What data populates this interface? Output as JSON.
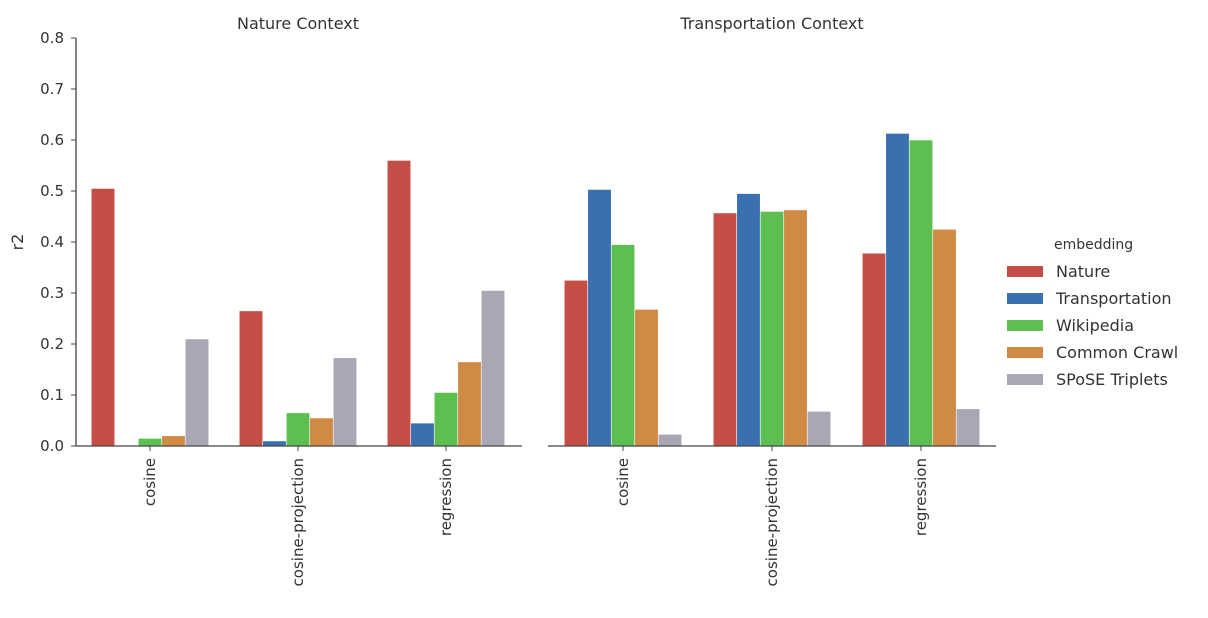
{
  "chart_data": {
    "type": "bar",
    "ylabel": "r2",
    "ylim": [
      0,
      0.8
    ],
    "yticks": [
      0.0,
      0.1,
      0.2,
      0.3,
      0.4,
      0.5,
      0.6,
      0.7,
      0.8
    ],
    "ytick_labels": [
      "0.0",
      "0.1",
      "0.2",
      "0.3",
      "0.4",
      "0.5",
      "0.6",
      "0.7",
      "0.8"
    ],
    "grid": false,
    "legend": {
      "title": "embedding",
      "placement": "right",
      "entries": [
        {
          "name": "Nature",
          "color": "#c44e45"
        },
        {
          "name": "Transportation",
          "color": "#3a6fb0"
        },
        {
          "name": "Wikipedia",
          "color": "#5cbf50"
        },
        {
          "name": "Common Crawl",
          "color": "#d08a45"
        },
        {
          "name": "SPoSE Triplets",
          "color": "#a9a7b3"
        }
      ]
    },
    "panels": [
      {
        "title": "Nature Context",
        "categories": [
          "cosine",
          "cosine-projection",
          "regression"
        ],
        "series": [
          {
            "name": "Nature",
            "values": [
              0.505,
              0.265,
              0.56
            ]
          },
          {
            "name": "Transportation",
            "values": [
              0.0,
              0.01,
              0.045
            ]
          },
          {
            "name": "Wikipedia",
            "values": [
              0.015,
              0.065,
              0.105
            ]
          },
          {
            "name": "Common Crawl",
            "values": [
              0.02,
              0.055,
              0.165
            ]
          },
          {
            "name": "SPoSE Triplets",
            "values": [
              0.21,
              0.173,
              0.305
            ]
          }
        ]
      },
      {
        "title": "Transportation Context",
        "categories": [
          "cosine",
          "cosine-projection",
          "regression"
        ],
        "series": [
          {
            "name": "Nature",
            "values": [
              0.325,
              0.457,
              0.378
            ]
          },
          {
            "name": "Transportation",
            "values": [
              0.503,
              0.495,
              0.613
            ]
          },
          {
            "name": "Wikipedia",
            "values": [
              0.395,
              0.46,
              0.6
            ]
          },
          {
            "name": "Common Crawl",
            "values": [
              0.268,
              0.463,
              0.425
            ]
          },
          {
            "name": "SPoSE Triplets",
            "values": [
              0.023,
              0.068,
              0.073
            ]
          }
        ]
      }
    ]
  }
}
